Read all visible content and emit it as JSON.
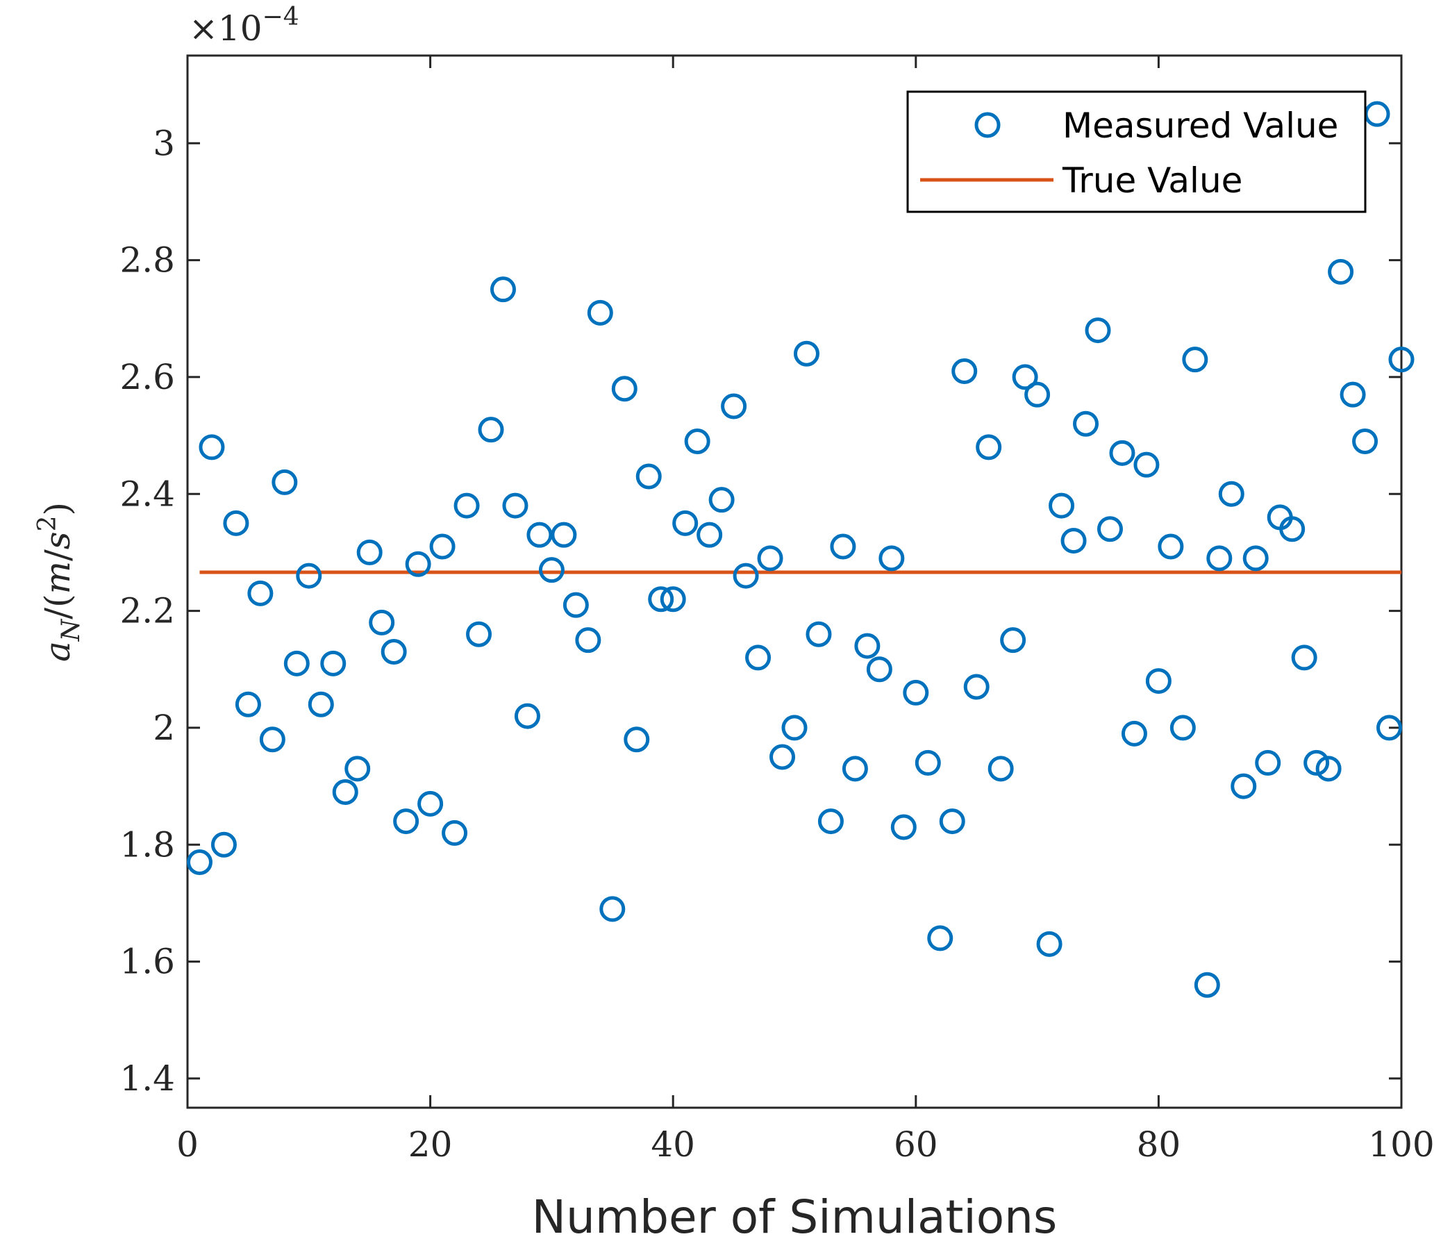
{
  "chart_data": {
    "type": "scatter",
    "xlabel": "Number of Simulations",
    "ylabel": "a_N/(m/s^2)",
    "y_exponent": "×10^{-4}",
    "xlim": [
      0,
      100
    ],
    "ylim": [
      1.35,
      3.15
    ],
    "xticks": [
      0,
      20,
      40,
      60,
      80,
      100
    ],
    "yticks": [
      1.4,
      1.6,
      1.8,
      2,
      2.2,
      2.4,
      2.6,
      2.8,
      3
    ],
    "ytick_labels": [
      "1.4",
      "1.6",
      "1.8",
      "2",
      "2.2",
      "2.4",
      "2.6",
      "2.8",
      "3"
    ],
    "xtick_labels": [
      "0",
      "20",
      "40",
      "60",
      "80",
      "100"
    ],
    "grid": false,
    "legend_position": "top-right",
    "colors": {
      "measured": "#0072BD",
      "true": "#D95319",
      "axes": "#262626"
    },
    "series": [
      {
        "name": "Measured Value",
        "marker": "circle-open",
        "x": [
          1,
          2,
          3,
          4,
          5,
          6,
          7,
          8,
          9,
          10,
          11,
          12,
          13,
          14,
          15,
          16,
          17,
          18,
          19,
          20,
          21,
          22,
          23,
          24,
          25,
          26,
          27,
          28,
          29,
          30,
          31,
          32,
          33,
          34,
          35,
          36,
          37,
          38,
          39,
          40,
          41,
          42,
          43,
          44,
          45,
          46,
          47,
          48,
          49,
          50,
          51,
          52,
          53,
          54,
          55,
          56,
          57,
          58,
          59,
          60,
          61,
          62,
          63,
          64,
          65,
          66,
          67,
          68,
          69,
          70,
          71,
          72,
          73,
          74,
          75,
          76,
          77,
          78,
          79,
          80,
          81,
          82,
          83,
          84,
          85,
          86,
          87,
          88,
          89,
          90,
          91,
          92,
          93,
          94,
          95,
          96,
          97,
          98,
          99,
          100
        ],
        "y": [
          1.77,
          2.48,
          1.8,
          2.35,
          2.04,
          2.23,
          1.98,
          2.42,
          2.11,
          2.26,
          2.04,
          2.11,
          1.89,
          1.93,
          2.3,
          2.18,
          2.13,
          1.84,
          2.28,
          1.87,
          2.31,
          1.82,
          2.38,
          2.16,
          2.51,
          2.75,
          2.38,
          2.02,
          2.33,
          2.27,
          2.33,
          2.21,
          2.15,
          2.71,
          1.69,
          2.58,
          1.98,
          2.43,
          2.22,
          2.22,
          2.35,
          2.49,
          2.33,
          2.39,
          2.55,
          2.26,
          2.12,
          2.29,
          1.95,
          2.0,
          2.64,
          2.16,
          1.84,
          2.31,
          1.93,
          2.14,
          2.1,
          2.29,
          1.83,
          2.06,
          1.94,
          1.64,
          1.84,
          2.61,
          2.07,
          2.48,
          1.93,
          2.15,
          2.6,
          2.57,
          1.63,
          2.38,
          2.32,
          2.52,
          2.68,
          2.34,
          2.47,
          1.99,
          2.45,
          2.08,
          2.31,
          2.0,
          2.63,
          1.56,
          2.29,
          2.4,
          1.9,
          2.29,
          1.94,
          2.36,
          2.34,
          2.12,
          1.94,
          1.93,
          2.78,
          2.57,
          2.49,
          3.05,
          2.0,
          2.63
        ]
      },
      {
        "name": "True Value",
        "marker": "line",
        "x": [
          1,
          100
        ],
        "y": [
          2.266,
          2.266
        ]
      }
    ]
  }
}
